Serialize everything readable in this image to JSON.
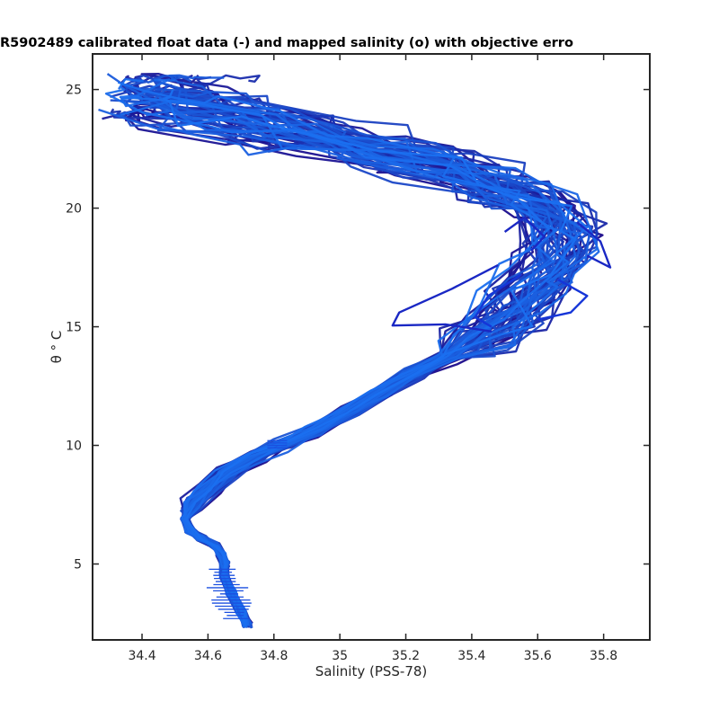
{
  "chart_data": {
    "type": "line",
    "title": "R5902489 calibrated float data (-) and mapped salinity (o) with objective erro",
    "xlabel": "Salinity (PSS-78)",
    "ylabel": "θ ° C",
    "xlim": [
      34.25,
      35.94
    ],
    "ylim": [
      1.8,
      26.5
    ],
    "xticks": [
      "34.4",
      "34.6",
      "34.8",
      "35",
      "35.2",
      "35.4",
      "35.6",
      "35.8"
    ],
    "yticks": [
      "5",
      "10",
      "15",
      "20",
      "25"
    ],
    "xtick_values": [
      34.4,
      34.6,
      34.8,
      35.0,
      35.2,
      35.4,
      35.6,
      35.8
    ],
    "ytick_values": [
      5,
      10,
      15,
      20,
      25
    ],
    "grid": false,
    "profile_count": 60,
    "colors": {
      "profile_dark": "#1a0a8a",
      "profile_light": "#1a70f0",
      "axis": "#262626"
    },
    "mean_profile": [
      [
        34.72,
        2.4
      ],
      [
        34.7,
        3.0
      ],
      [
        34.67,
        3.8
      ],
      [
        34.65,
        4.5
      ],
      [
        34.65,
        5.0
      ],
      [
        34.64,
        5.4
      ],
      [
        34.62,
        5.8
      ],
      [
        34.58,
        6.1
      ],
      [
        34.545,
        6.4
      ],
      [
        34.53,
        6.9
      ],
      [
        34.55,
        7.5
      ],
      [
        34.6,
        8.2
      ],
      [
        34.66,
        8.8
      ],
      [
        34.74,
        9.5
      ],
      [
        34.82,
        10.0
      ],
      [
        34.92,
        10.6
      ],
      [
        35.02,
        11.4
      ],
      [
        35.12,
        12.2
      ],
      [
        35.22,
        13.0
      ],
      [
        35.32,
        13.7
      ],
      [
        35.42,
        14.4
      ],
      [
        35.5,
        15.3
      ],
      [
        35.56,
        16.3
      ],
      [
        35.62,
        17.3
      ],
      [
        35.66,
        18.3
      ],
      [
        35.67,
        19.2
      ],
      [
        35.62,
        20.0
      ],
      [
        35.52,
        20.6
      ],
      [
        35.4,
        21.2
      ],
      [
        35.25,
        21.8
      ],
      [
        35.1,
        22.3
      ],
      [
        34.95,
        22.8
      ],
      [
        34.8,
        23.2
      ],
      [
        34.65,
        23.6
      ],
      [
        34.5,
        24.0
      ],
      [
        34.4,
        24.2
      ]
    ],
    "excursions": [
      [
        [
          35.48,
          17.6
        ],
        [
          35.34,
          16.6
        ],
        [
          35.18,
          15.6
        ],
        [
          35.16,
          15.05
        ],
        [
          35.32,
          15.1
        ],
        [
          35.46,
          14.8
        ]
      ],
      [
        [
          35.55,
          17.2
        ],
        [
          35.45,
          16.3
        ],
        [
          35.41,
          15.4
        ],
        [
          35.46,
          15.0
        ]
      ],
      [
        [
          35.5,
          19.0
        ],
        [
          35.56,
          19.6
        ],
        [
          35.62,
          18.8
        ],
        [
          35.58,
          18.2
        ]
      ],
      [
        [
          35.66,
          17.0
        ],
        [
          35.75,
          16.3
        ],
        [
          35.7,
          15.6
        ],
        [
          35.6,
          15.3
        ]
      ],
      [
        [
          35.75,
          18.0
        ],
        [
          35.82,
          17.5
        ],
        [
          35.79,
          18.6
        ],
        [
          35.72,
          19.4
        ]
      ]
    ]
  }
}
